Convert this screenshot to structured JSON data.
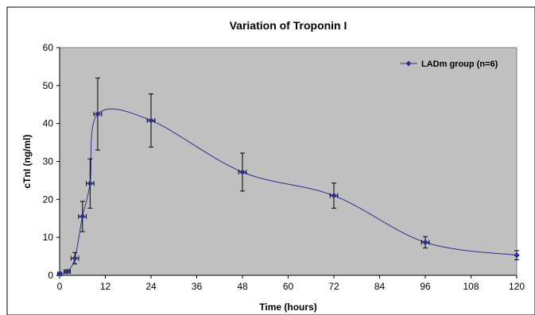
{
  "chart_data": {
    "type": "line",
    "title": "Variation of Troponin I",
    "xlabel": "Time (hours)",
    "ylabel": "cTnI (ng/ml)",
    "xlim": [
      0,
      120
    ],
    "ylim": [
      0,
      60
    ],
    "xticks": [
      0,
      12,
      24,
      36,
      48,
      60,
      72,
      84,
      96,
      108,
      120
    ],
    "yticks": [
      0,
      10,
      20,
      30,
      40,
      50,
      60
    ],
    "grid": false,
    "legend_position": "top-right",
    "series": [
      {
        "name": "LADm group (n=6)",
        "color": "#2e3192",
        "marker": "diamond",
        "points": [
          {
            "x": 0,
            "y": 0.4,
            "yerr": 0.3,
            "xerr": 0.5
          },
          {
            "x": 2,
            "y": 1.0,
            "yerr": 0.4,
            "xerr": 0.8
          },
          {
            "x": 4,
            "y": 4.5,
            "yerr": 1.5,
            "xerr": 1.0
          },
          {
            "x": 6,
            "y": 15.5,
            "yerr": 4.0,
            "xerr": 1.0
          },
          {
            "x": 8,
            "y": 24.2,
            "yerr": 6.5,
            "xerr": 1.0
          },
          {
            "x": 10,
            "y": 42.5,
            "yerr": 9.5,
            "xerr": 1.0
          },
          {
            "x": 24,
            "y": 40.8,
            "yerr": 7.0,
            "xerr": 1.0
          },
          {
            "x": 48,
            "y": 27.2,
            "yerr": 5.0,
            "xerr": 1.0
          },
          {
            "x": 72,
            "y": 21.0,
            "yerr": 3.3,
            "xerr": 1.0
          },
          {
            "x": 96,
            "y": 8.7,
            "yerr": 1.5,
            "xerr": 1.0
          },
          {
            "x": 120,
            "y": 5.3,
            "yerr": 1.2,
            "xerr": 0.0
          }
        ]
      }
    ]
  }
}
